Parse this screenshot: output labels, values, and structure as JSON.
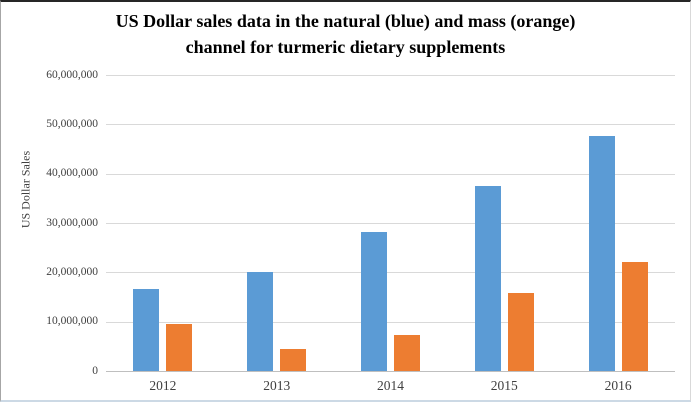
{
  "title": {
    "line1": "US Dollar sales data in the natural (blue) and mass (orange)",
    "line2": "channel for turmeric dietary supplements"
  },
  "chart_data": {
    "type": "bar",
    "title": "US Dollar sales data in the natural (blue) and mass (orange) channel for turmeric dietary supplements",
    "xlabel": "",
    "ylabel": "US Dollar Sales",
    "categories": [
      "2012",
      "2013",
      "2014",
      "2015",
      "2016"
    ],
    "series": [
      {
        "name": "Natural channel",
        "key": "natural",
        "color": "#5B9BD5",
        "values": [
          16700000,
          20000000,
          28100000,
          37400000,
          47600000
        ]
      },
      {
        "name": "Mass channel",
        "key": "mass",
        "color": "#ED7D31",
        "values": [
          9600000,
          4400000,
          7300000,
          15800000,
          22100000
        ]
      }
    ],
    "ylim": [
      0,
      60000000
    ],
    "ytick_step": 10000000,
    "ytick_labels": [
      "0",
      "10,000,000",
      "20,000,000",
      "30,000,000",
      "40,000,000",
      "50,000,000",
      "60,000,000"
    ],
    "grid": "horizontal",
    "legend_position": "none",
    "colors": {
      "gridline": "#d9d9d9",
      "axis_line": "#bfbfbf",
      "tick_text": "#404040",
      "title_text": "#000000"
    }
  }
}
